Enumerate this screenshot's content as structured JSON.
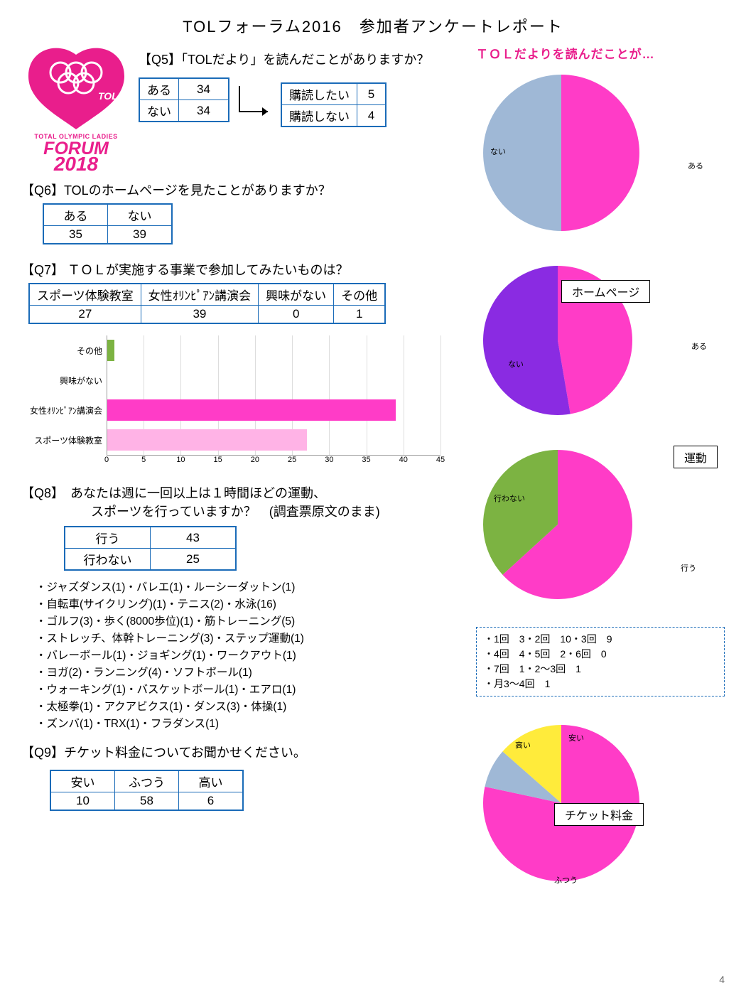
{
  "page": {
    "title": "TOLフォーラム2016　参加者アンケートレポート",
    "number": "4"
  },
  "logo": {
    "line1": "TOTAL OLYMPIC LADIES",
    "line2": "FORUM",
    "line3": "2018",
    "color": "#e91e8c"
  },
  "right_title": "ＴＯＬだよりを読んだことが…",
  "q5": {
    "question": "【Q5】「TOLだより」を読んだことがありますか？",
    "table1_rows": [
      [
        "ある",
        "34"
      ],
      [
        "ない",
        "34"
      ]
    ],
    "table2_rows": [
      [
        "購読したい",
        "5"
      ],
      [
        "購読しない",
        "4"
      ]
    ]
  },
  "q6": {
    "question": "【Q6】TOLのホームページを見たことがありますか？",
    "headers": [
      "ある",
      "ない"
    ],
    "values": [
      "35",
      "39"
    ]
  },
  "q7": {
    "question": "【Q7】 ＴＯＬが実施する事業で参加してみたいものは？",
    "headers": [
      "スポーツ体験教室",
      "女性ｵﾘﾝﾋﾟｱﾝ講演会",
      "興味がない",
      "その他"
    ],
    "values": [
      "27",
      "39",
      "0",
      "1"
    ]
  },
  "q8": {
    "question_l1": "【Q8】　あなたは週に一回以上は１時間ほどの運動、",
    "question_l2": "スポーツを行っていますか？　(調査票原文のまま)",
    "table_rows": [
      [
        "行う",
        "43"
      ],
      [
        "行わない",
        "25"
      ]
    ],
    "activities": [
      "・ジャズダンス(1)・バレエ(1)・ルーシーダットン(1)",
      "・自転車(サイクリング)(1)・テニス(2)・水泳(16)",
      "・ゴルフ(3)・歩く(8000歩位)(1)・筋トレーニング(5)",
      "・ストレッチ、体幹トレーニング(3)・ステップ運動(1)",
      "・バレーボール(1)・ジョギング(1)・ワークアウト(1)",
      "・ヨガ(2)・ランニング(4)・ソフトボール(1)",
      "・ウォーキング(1)・バスケットボール(1)・エアロ(1)",
      "・太極拳(1)・アクアビクス(1)・ダンス(3)・体操(1)",
      "・ズンバ(1)・TRX(1)・フラダンス(1)"
    ]
  },
  "q9": {
    "question": "【Q9】チケット料金についてお聞かせください。",
    "headers": [
      "安い",
      "ふつう",
      "高い"
    ],
    "values": [
      "10",
      "58",
      "6"
    ]
  },
  "barchart": {
    "max": 45,
    "ticks": [
      0,
      5,
      10,
      15,
      20,
      25,
      30,
      35,
      40,
      45
    ],
    "bars": [
      {
        "label": "その他",
        "value": 1,
        "color": "#7cb342"
      },
      {
        "label": "興味がない",
        "value": 0,
        "color": "#999999"
      },
      {
        "label": "女性ｵﾘﾝﾋﾟｱﾝ講演会",
        "value": 39,
        "color": "#ff3cc7"
      },
      {
        "label": "スポーツ体験教室",
        "value": 27,
        "color": "#ffb3e6"
      }
    ]
  },
  "pie1": {
    "slices": [
      {
        "label": "ある",
        "value": 34,
        "color": "#ff3cc7"
      },
      {
        "label": "ない",
        "value": 34,
        "color": "#9fb8d6"
      }
    ]
  },
  "pie2": {
    "overlay": "ホームページ",
    "slices": [
      {
        "label": "ある",
        "value": 35,
        "color": "#ff3cc7"
      },
      {
        "label": "ない",
        "value": 39,
        "color": "#8a2be2"
      }
    ]
  },
  "pie3": {
    "overlay": "運動",
    "slices": [
      {
        "label": "行う",
        "value": 43,
        "color": "#ff3cc7"
      },
      {
        "label": "行わない",
        "value": 25,
        "color": "#7cb342"
      }
    ],
    "freq_box": [
      "・1回　3・2回　10・3回　9",
      "・4回　4・5回　2・6回　0",
      "・7回　1・2～3回　1",
      "・月3～4回　1"
    ]
  },
  "pie4": {
    "overlay": "チケット料金",
    "slices": [
      {
        "label": "ふつう",
        "value": 58,
        "color": "#ff3cc7"
      },
      {
        "label": "高い",
        "value": 6,
        "color": "#9fb8d6"
      },
      {
        "label": "安い",
        "value": 10,
        "color": "#ffeb3b"
      }
    ]
  }
}
